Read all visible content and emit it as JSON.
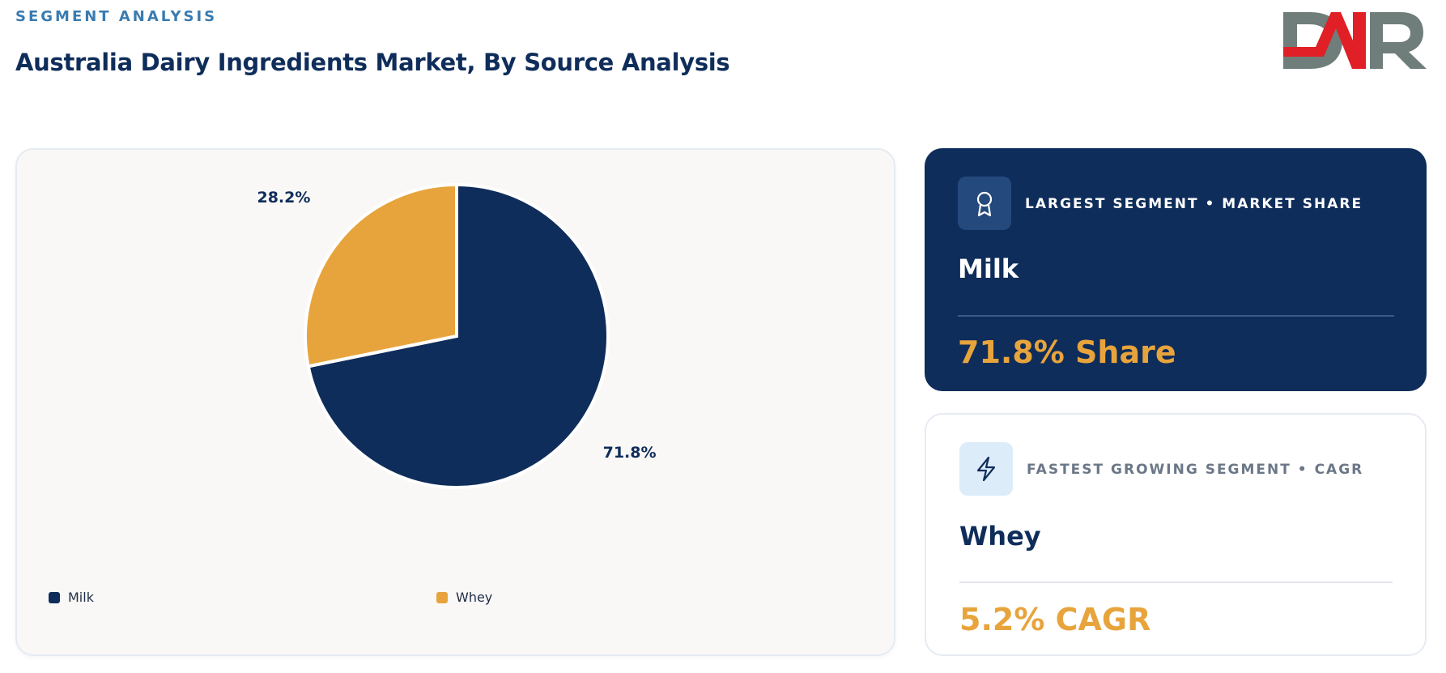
{
  "header": {
    "eyebrow": "SEGMENT ANALYSIS",
    "title": "Australia Dairy Ingredients Market, By Source Analysis"
  },
  "logo": {
    "text": "DMR",
    "colors": {
      "d": "#6f7e7a",
      "m": "#e01f26",
      "r": "#6f7e7a"
    }
  },
  "chart_data": {
    "type": "pie",
    "categories": [
      "Milk",
      "Whey"
    ],
    "values": [
      71.8,
      28.2
    ],
    "labels": [
      "71.8%",
      "28.2%"
    ],
    "colors": [
      "#0f2d5a",
      "#e8a43c"
    ],
    "legend_position": "bottom"
  },
  "cards": {
    "largest": {
      "icon": "award-icon",
      "label": "LARGEST SEGMENT • MARKET SHARE",
      "name": "Milk",
      "value": "71.8% Share"
    },
    "fastest": {
      "icon": "lightning-icon",
      "label": "FASTEST GROWING SEGMENT • CAGR",
      "name": "Whey",
      "value": "5.2% CAGR"
    }
  }
}
